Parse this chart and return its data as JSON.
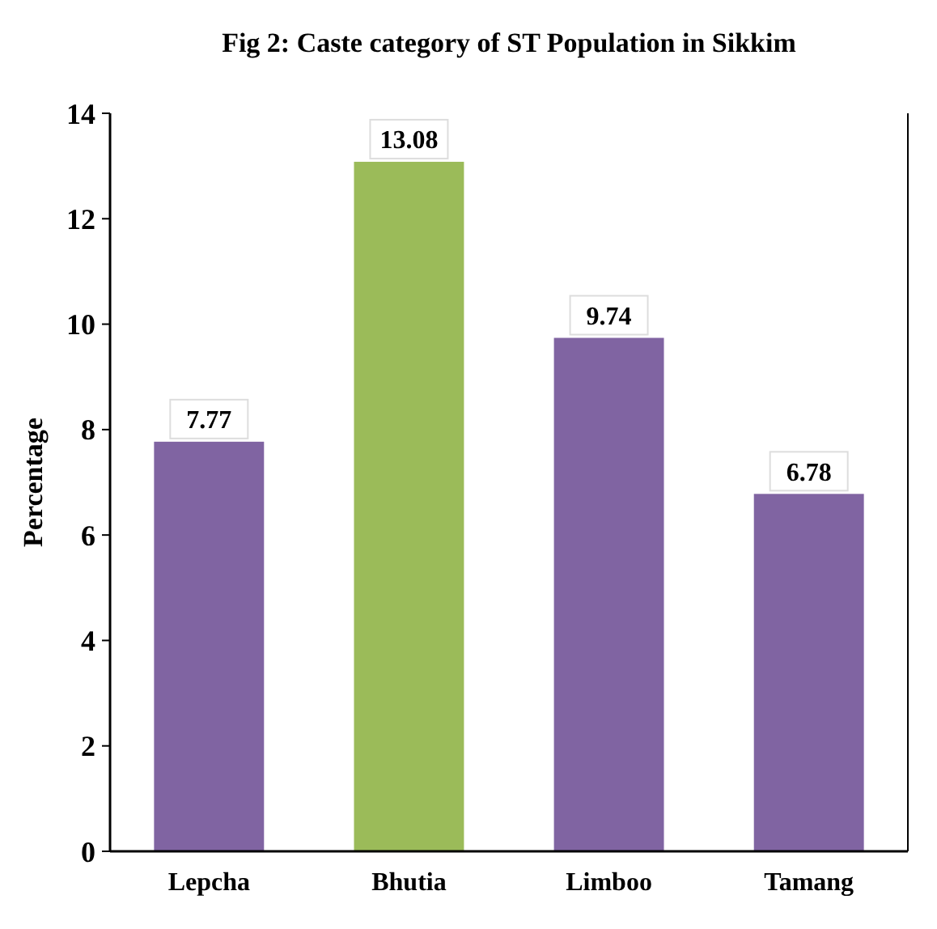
{
  "chart_data": {
    "type": "bar",
    "title": "Fig 2: Caste category of ST Population in Sikkim",
    "ylabel": "Percentage",
    "categories": [
      "Lepcha",
      "Bhutia",
      "Limboo",
      "Tamang"
    ],
    "values": [
      7.77,
      13.08,
      9.74,
      6.78
    ],
    "colors": [
      "#8064a2",
      "#9bbb59",
      "#8064a2",
      "#8064a2"
    ],
    "ylim": [
      0,
      14
    ],
    "yticks": [
      0,
      2,
      4,
      6,
      8,
      10,
      12,
      14
    ],
    "grid": false,
    "data_labels": true
  }
}
